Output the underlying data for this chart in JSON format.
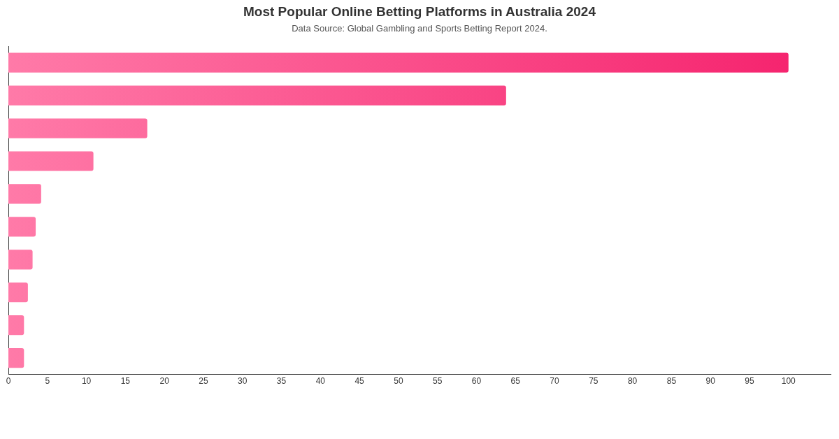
{
  "chart_data": {
    "type": "bar",
    "orientation": "horizontal",
    "title": "Most Popular Online Betting Platforms in Australia 2024",
    "subtitle": "Data Source: Global Gambling and Sports Betting Report 2024.",
    "categories": [
      null,
      null,
      null,
      null,
      null,
      null,
      null,
      null,
      null,
      null
    ],
    "values": [
      100,
      63.8,
      17.8,
      10.9,
      4.2,
      3.5,
      3.1,
      2.5,
      2.0,
      2.0
    ],
    "color": "#f5206c",
    "xlim": [
      0,
      105.4
    ],
    "xticks": [
      0,
      5,
      10,
      15,
      20,
      25,
      30,
      35,
      40,
      45,
      50,
      55,
      60,
      65,
      70,
      75,
      80,
      85,
      90,
      95,
      100
    ],
    "grid": false,
    "legend": false
  }
}
